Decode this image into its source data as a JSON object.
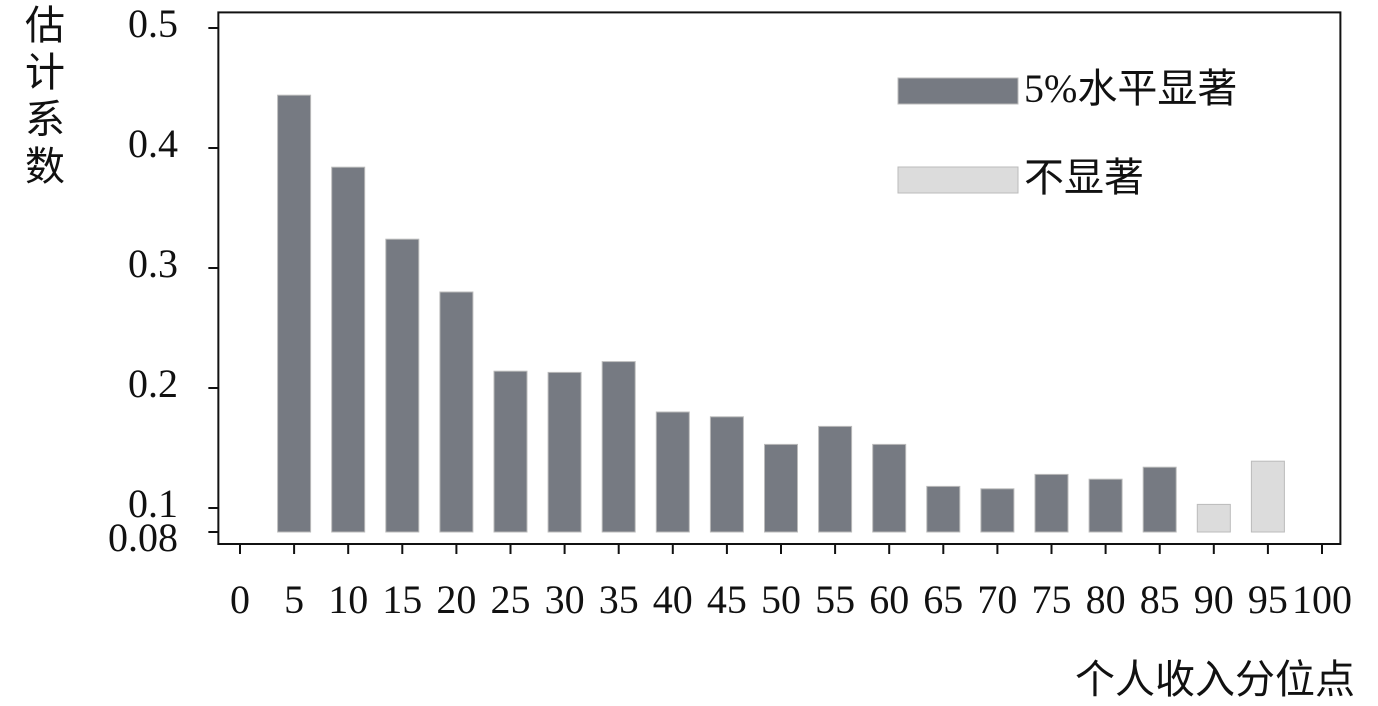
{
  "chart_data": {
    "type": "bar",
    "y_label": "估计系数",
    "x_label": "个人收入分位点",
    "x": [
      5,
      10,
      15,
      20,
      25,
      30,
      35,
      40,
      45,
      50,
      55,
      60,
      65,
      70,
      75,
      80,
      85,
      90,
      95
    ],
    "series": [
      {
        "name": "5%水平显著",
        "color": "#767a82",
        "values": [
          0.444,
          0.384,
          0.324,
          0.28,
          0.214,
          0.213,
          0.222,
          0.18,
          0.176,
          0.153,
          0.168,
          0.153,
          0.118,
          0.116,
          0.128,
          0.124,
          0.134,
          null,
          null
        ]
      },
      {
        "name": "不显著",
        "color": "#dcdcdc",
        "values": [
          null,
          null,
          null,
          null,
          null,
          null,
          null,
          null,
          null,
          null,
          null,
          null,
          null,
          null,
          null,
          null,
          null,
          0.103,
          0.139
        ]
      }
    ],
    "xlim": [
      -2,
      101.7
    ],
    "xticks": [
      0,
      5,
      10,
      15,
      20,
      25,
      30,
      35,
      40,
      45,
      50,
      55,
      60,
      65,
      70,
      75,
      80,
      85,
      90,
      95,
      100
    ],
    "ylim": [
      0.07,
      0.513
    ],
    "yticks": [
      0.08,
      0.1,
      0.2,
      0.3,
      0.4,
      0.5
    ],
    "legend": "upper right"
  }
}
